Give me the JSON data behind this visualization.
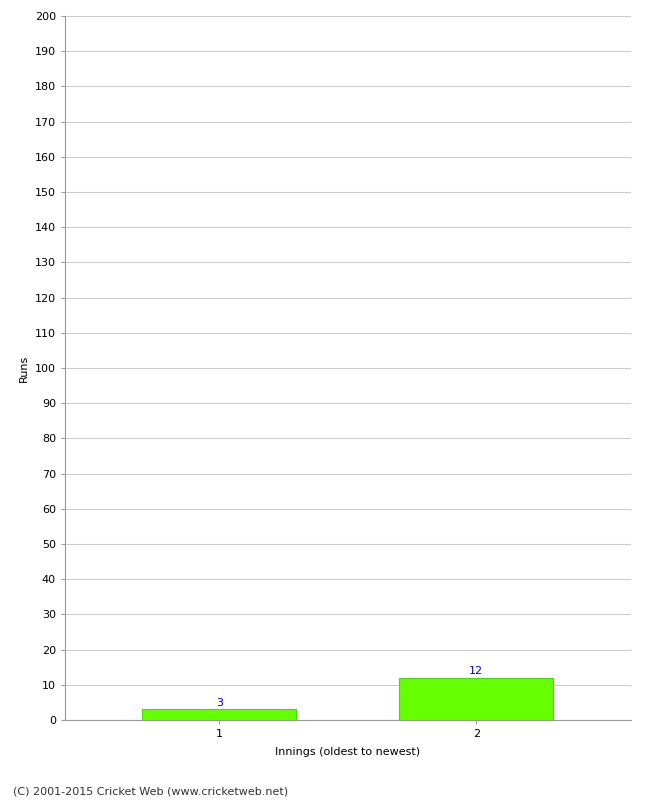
{
  "categories": [
    1,
    2
  ],
  "values": [
    3,
    12
  ],
  "bar_color": "#66ff00",
  "bar_edge_color": "#44dd00",
  "label_color": "#0000cc",
  "xlabel": "Innings (oldest to newest)",
  "ylabel": "Runs",
  "ylim": [
    0,
    200
  ],
  "yticks": [
    0,
    10,
    20,
    30,
    40,
    50,
    60,
    70,
    80,
    90,
    100,
    110,
    120,
    130,
    140,
    150,
    160,
    170,
    180,
    190,
    200
  ],
  "background_color": "#ffffff",
  "grid_color": "#cccccc",
  "footer": "(C) 2001-2015 Cricket Web (www.cricketweb.net)",
  "label_fontsize": 8,
  "axis_fontsize": 8,
  "footer_fontsize": 8,
  "bar_width": 0.6
}
